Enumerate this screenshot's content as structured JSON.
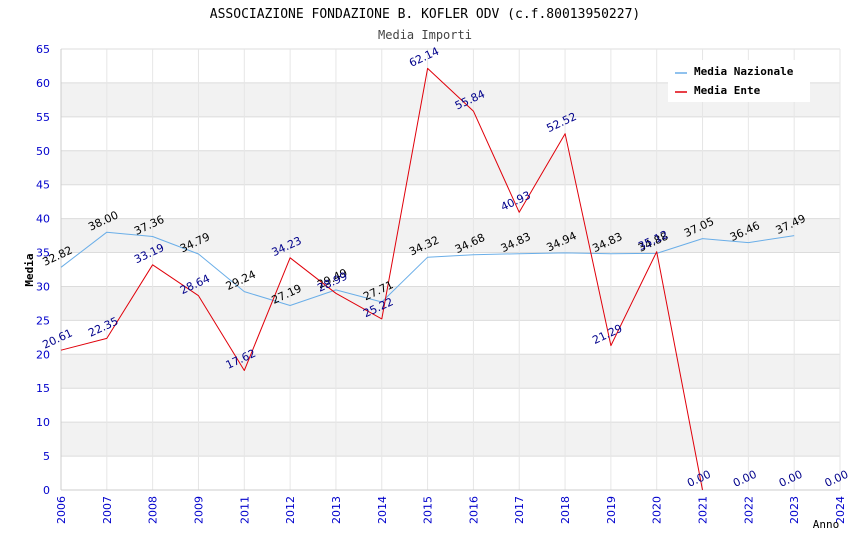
{
  "chart_data": {
    "type": "line",
    "title": "ASSOCIAZIONE FONDAZIONE B. KOFLER ODV (c.f.80013950227)",
    "subtitle": "Media Importi",
    "xlabel": "Anno",
    "ylabel": "Media",
    "x": [
      "2006",
      "2007",
      "2008",
      "2009",
      "2011",
      "2012",
      "2013",
      "2014",
      "2015",
      "2016",
      "2017",
      "2018",
      "2019",
      "2020",
      "2021",
      "2022",
      "2023",
      "2024"
    ],
    "ylim": [
      0,
      65
    ],
    "yticks": [
      0,
      5,
      10,
      15,
      20,
      25,
      30,
      35,
      40,
      45,
      50,
      55,
      60,
      65
    ],
    "grid": true,
    "legend_position": "top-right",
    "series": [
      {
        "name": "Media Nazionale",
        "color": "#6aaee8",
        "label_color": "#000000",
        "values": [
          32.82,
          38.0,
          37.36,
          34.79,
          29.24,
          27.19,
          29.49,
          27.71,
          34.32,
          34.68,
          34.83,
          34.94,
          34.83,
          34.88,
          37.05,
          36.46,
          37.49,
          null
        ],
        "labels": [
          "32.82",
          "38.00",
          "37.36",
          "34.79",
          "29.24",
          "27.19",
          "29.49",
          "27.71",
          "34.32",
          "34.68",
          "34.83",
          "34.94",
          "34.83",
          "34.88",
          "37.05",
          "36.46",
          "37.49",
          ""
        ]
      },
      {
        "name": "Media Ente",
        "color": "#e0000a",
        "label_color": "#00008b",
        "values": [
          20.61,
          22.35,
          33.19,
          28.64,
          17.62,
          34.23,
          28.99,
          25.22,
          62.14,
          55.84,
          40.93,
          52.52,
          21.29,
          35.12,
          0.0,
          0.0,
          0.0,
          0.0
        ],
        "labels": [
          "20.61",
          "22.35",
          "33.19",
          "28.64",
          "17.62",
          "34.23",
          "28.99",
          "25.22",
          "62.14",
          "55.84",
          "40.93",
          "52.52",
          "21.29",
          "35.12",
          "0.00",
          "0.00",
          "0.00",
          "0.00"
        ],
        "line_points": 15
      }
    ]
  }
}
